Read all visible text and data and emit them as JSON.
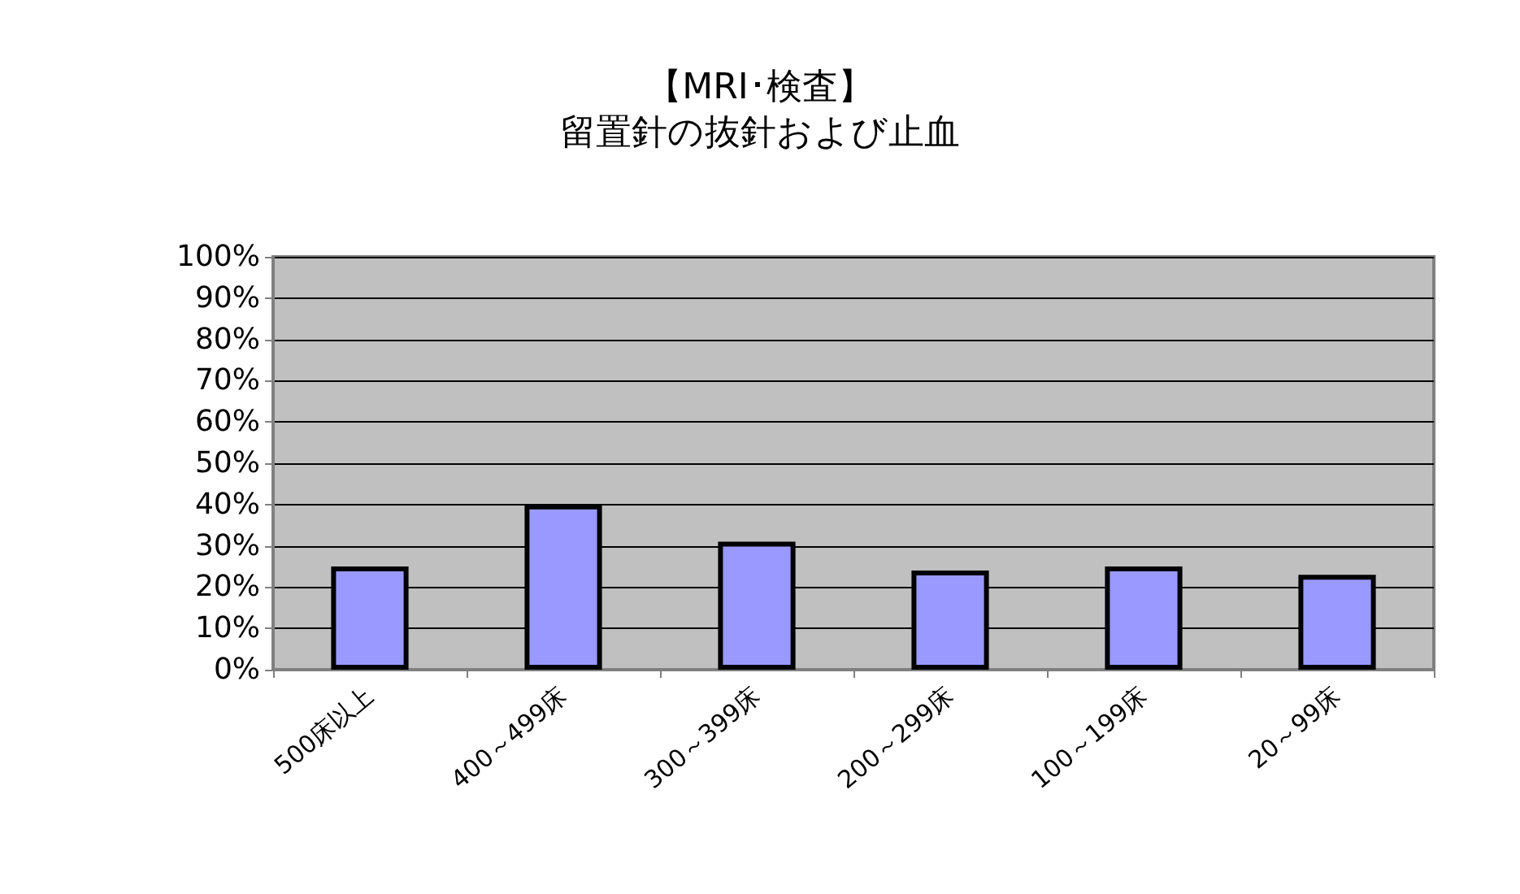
{
  "chart_data": {
    "type": "bar",
    "title": "【MRI･検査】",
    "subtitle": "留置針の抜針および止血",
    "categories": [
      "500床以上",
      "400～499床",
      "300～399床",
      "200～299床",
      "100～199床",
      "20～99床"
    ],
    "values": [
      25,
      40,
      31,
      24,
      25,
      23
    ],
    "color": "#9999ff",
    "ylim": [
      0,
      100
    ],
    "yticks": [
      {
        "value": 0,
        "label": "0%"
      },
      {
        "value": 10,
        "label": "10%"
      },
      {
        "value": 20,
        "label": "20%"
      },
      {
        "value": 30,
        "label": "30%"
      },
      {
        "value": 40,
        "label": "40%"
      },
      {
        "value": 50,
        "label": "50%"
      },
      {
        "value": 60,
        "label": "60%"
      },
      {
        "value": 70,
        "label": "70%"
      },
      {
        "value": 80,
        "label": "80%"
      },
      {
        "value": 90,
        "label": "90%"
      },
      {
        "value": 100,
        "label": "100%"
      }
    ],
    "grid": "y"
  }
}
